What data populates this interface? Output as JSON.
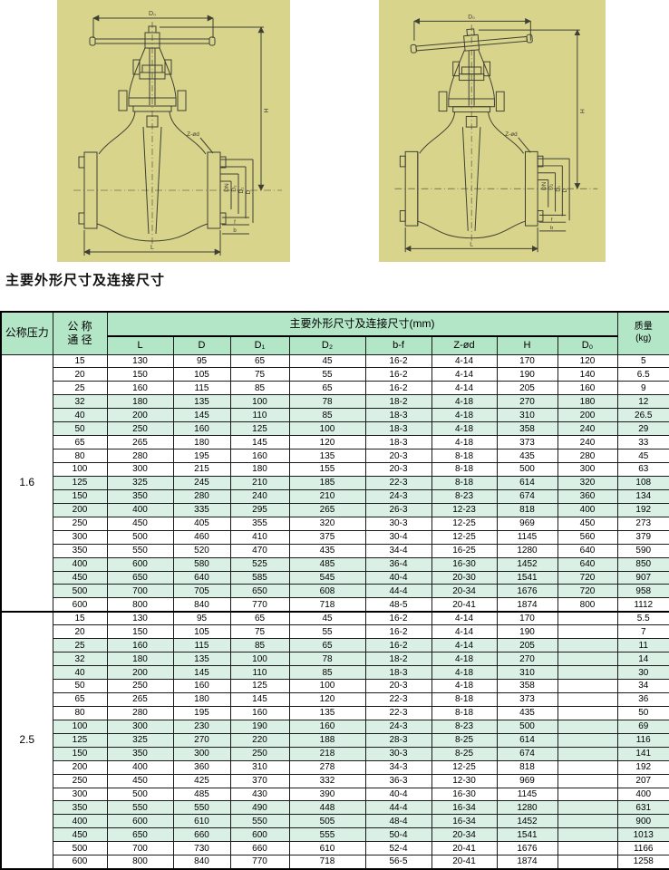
{
  "page": {
    "title": "主要外形尺寸及连接尺寸"
  },
  "colors": {
    "panel_yellow": "#d8d48c",
    "header_green": "#b3e5c7",
    "row_tint": "#daf0e4",
    "line": "#3f3f33"
  },
  "drawing": {
    "labels": {
      "d0": "D₀",
      "h": "H",
      "zod": "Z-ød",
      "dn": "DN",
      "d1": "D₁",
      "d2": "D₂",
      "d": "D",
      "l": "L",
      "f": "f",
      "b": "b"
    }
  },
  "table": {
    "header": {
      "pressure": "公称压力",
      "diameter_line1": "公  称",
      "diameter_line2": "通  径",
      "dims_group": "主要外形尺寸及连接尺寸(mm)",
      "mass_line1": "质量",
      "mass_line2": "(kg)",
      "sub_columns": [
        "L",
        "D",
        "D₁",
        "D₂",
        "b-f",
        "Z-ød",
        "H",
        "D₀"
      ]
    },
    "sections": [
      {
        "pressure": "1.6",
        "shaded_rows": [
          3,
          4,
          5,
          9,
          10,
          11,
          15,
          16,
          17
        ],
        "rows": [
          [
            "15",
            "130",
            "95",
            "65",
            "45",
            "16-2",
            "4-14",
            "170",
            "120",
            "5"
          ],
          [
            "20",
            "150",
            "105",
            "75",
            "55",
            "16-2",
            "4-14",
            "190",
            "140",
            "6.5"
          ],
          [
            "25",
            "160",
            "115",
            "85",
            "65",
            "16-2",
            "4-14",
            "205",
            "160",
            "9"
          ],
          [
            "32",
            "180",
            "135",
            "100",
            "78",
            "18-2",
            "4-18",
            "270",
            "180",
            "12"
          ],
          [
            "40",
            "200",
            "145",
            "110",
            "85",
            "18-3",
            "4-18",
            "310",
            "200",
            "26.5"
          ],
          [
            "50",
            "250",
            "160",
            "125",
            "100",
            "18-3",
            "4-18",
            "358",
            "240",
            "29"
          ],
          [
            "65",
            "265",
            "180",
            "145",
            "120",
            "18-3",
            "4-18",
            "373",
            "240",
            "33"
          ],
          [
            "80",
            "280",
            "195",
            "160",
            "135",
            "20-3",
            "8-18",
            "435",
            "280",
            "45"
          ],
          [
            "100",
            "300",
            "215",
            "180",
            "155",
            "20-3",
            "8-18",
            "500",
            "300",
            "63"
          ],
          [
            "125",
            "325",
            "245",
            "210",
            "185",
            "22-3",
            "8-18",
            "614",
            "320",
            "108"
          ],
          [
            "150",
            "350",
            "280",
            "240",
            "210",
            "24-3",
            "8-23",
            "674",
            "360",
            "134"
          ],
          [
            "200",
            "400",
            "335",
            "295",
            "265",
            "26-3",
            "12-23",
            "818",
            "400",
            "192"
          ],
          [
            "250",
            "450",
            "405",
            "355",
            "320",
            "30-3",
            "12-25",
            "969",
            "450",
            "273"
          ],
          [
            "300",
            "500",
            "460",
            "410",
            "375",
            "30-4",
            "12-25",
            "1145",
            "560",
            "379"
          ],
          [
            "350",
            "550",
            "520",
            "470",
            "435",
            "34-4",
            "16-25",
            "1280",
            "640",
            "590"
          ],
          [
            "400",
            "600",
            "580",
            "525",
            "485",
            "36-4",
            "16-30",
            "1452",
            "640",
            "850"
          ],
          [
            "450",
            "650",
            "640",
            "585",
            "545",
            "40-4",
            "20-30",
            "1541",
            "720",
            "907"
          ],
          [
            "500",
            "700",
            "705",
            "650",
            "608",
            "44-4",
            "20-34",
            "1676",
            "720",
            "958"
          ],
          [
            "600",
            "800",
            "840",
            "770",
            "718",
            "48-5",
            "20-41",
            "1874",
            "800",
            "1112"
          ]
        ]
      },
      {
        "pressure": "2.5",
        "shaded_rows": [
          2,
          3,
          4,
          8,
          9,
          10,
          14,
          15,
          16
        ],
        "rows": [
          [
            "15",
            "130",
            "95",
            "65",
            "45",
            "16-2",
            "4-14",
            "170",
            "",
            "5.5"
          ],
          [
            "20",
            "150",
            "105",
            "75",
            "55",
            "16-2",
            "4-14",
            "190",
            "",
            "7"
          ],
          [
            "25",
            "160",
            "115",
            "85",
            "65",
            "16-2",
            "4-14",
            "205",
            "",
            "11"
          ],
          [
            "32",
            "180",
            "135",
            "100",
            "78",
            "18-2",
            "4-18",
            "270",
            "",
            "14"
          ],
          [
            "40",
            "200",
            "145",
            "110",
            "85",
            "18-3",
            "4-18",
            "310",
            "",
            "30"
          ],
          [
            "50",
            "250",
            "160",
            "125",
            "100",
            "20-3",
            "4-18",
            "358",
            "",
            "34"
          ],
          [
            "65",
            "265",
            "180",
            "145",
            "120",
            "22-3",
            "8-18",
            "373",
            "",
            "36"
          ],
          [
            "80",
            "280",
            "195",
            "160",
            "135",
            "22-3",
            "8-18",
            "435",
            "",
            "50"
          ],
          [
            "100",
            "300",
            "230",
            "190",
            "160",
            "24-3",
            "8-23",
            "500",
            "",
            "69"
          ],
          [
            "125",
            "325",
            "270",
            "220",
            "188",
            "28-3",
            "8-25",
            "614",
            "",
            "116"
          ],
          [
            "150",
            "350",
            "300",
            "250",
            "218",
            "30-3",
            "8-25",
            "674",
            "",
            "141"
          ],
          [
            "200",
            "400",
            "360",
            "310",
            "278",
            "34-3",
            "12-25",
            "818",
            "",
            "192"
          ],
          [
            "250",
            "450",
            "425",
            "370",
            "332",
            "36-3",
            "12-30",
            "969",
            "",
            "207"
          ],
          [
            "300",
            "500",
            "485",
            "430",
            "390",
            "40-4",
            "16-30",
            "1145",
            "",
            "400"
          ],
          [
            "350",
            "550",
            "550",
            "490",
            "448",
            "44-4",
            "16-34",
            "1280",
            "",
            "631"
          ],
          [
            "400",
            "600",
            "610",
            "550",
            "505",
            "48-4",
            "16-34",
            "1452",
            "",
            "900"
          ],
          [
            "450",
            "650",
            "660",
            "600",
            "555",
            "50-4",
            "20-34",
            "1541",
            "",
            "1013"
          ],
          [
            "500",
            "700",
            "730",
            "660",
            "610",
            "52-4",
            "20-41",
            "1676",
            "",
            "1166"
          ],
          [
            "600",
            "800",
            "840",
            "770",
            "718",
            "56-5",
            "20-41",
            "1874",
            "",
            "1258"
          ]
        ]
      }
    ]
  }
}
